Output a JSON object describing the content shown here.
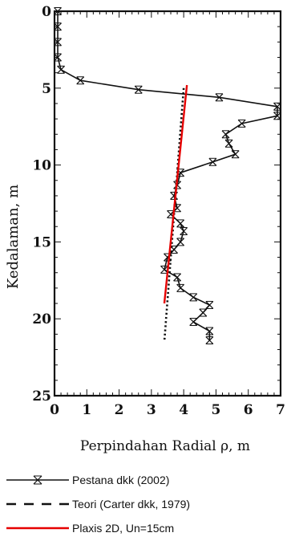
{
  "chart_data": {
    "type": "line",
    "xlabel": "Perpindahan Radial ρ, m",
    "ylabel": "Kedalaman, m",
    "xlim": [
      0,
      7
    ],
    "ylim": [
      0,
      25
    ],
    "y_inverted": true,
    "xticks": [
      0,
      1,
      2,
      3,
      4,
      5,
      6,
      7
    ],
    "yticks": [
      0,
      5,
      10,
      15,
      20,
      25
    ],
    "grid": false,
    "legend_position": "bottom",
    "series": [
      {
        "name": "Pestana dkk (2002)",
        "color": "#111111",
        "line_style": "solid",
        "marker": "x",
        "points": [
          [
            0.1,
            0.0
          ],
          [
            0.1,
            1.0
          ],
          [
            0.1,
            2.0
          ],
          [
            0.1,
            3.0
          ],
          [
            0.2,
            3.8
          ],
          [
            0.8,
            4.5
          ],
          [
            2.6,
            5.1
          ],
          [
            5.1,
            5.6
          ],
          [
            6.9,
            6.2
          ],
          [
            6.9,
            6.8
          ],
          [
            5.8,
            7.3
          ],
          [
            5.3,
            8.0
          ],
          [
            5.4,
            8.6
          ],
          [
            5.6,
            9.3
          ],
          [
            4.9,
            9.8
          ],
          [
            3.9,
            10.5
          ],
          [
            3.8,
            11.3
          ],
          [
            3.7,
            12.0
          ],
          [
            3.8,
            12.8
          ],
          [
            3.6,
            13.2
          ],
          [
            3.9,
            13.8
          ],
          [
            4.0,
            14.3
          ],
          [
            3.9,
            15.0
          ],
          [
            3.7,
            15.5
          ],
          [
            3.5,
            16.0
          ],
          [
            3.4,
            16.8
          ],
          [
            3.8,
            17.3
          ],
          [
            3.9,
            18.0
          ],
          [
            4.3,
            18.6
          ],
          [
            4.8,
            19.1
          ],
          [
            4.6,
            19.6
          ],
          [
            4.3,
            20.2
          ],
          [
            4.8,
            20.8
          ],
          [
            4.8,
            21.4
          ]
        ]
      },
      {
        "name": "Teori (Carter dkk, 1979)",
        "color": "#111111",
        "line_style": "dotted",
        "marker": "none",
        "points": [
          [
            4.0,
            5.0
          ],
          [
            3.4,
            21.5
          ]
        ]
      },
      {
        "name": "Plaxis 2D, Un=15cm",
        "color": "#e60000",
        "line_style": "solid",
        "marker": "none",
        "points": [
          [
            4.1,
            4.8
          ],
          [
            3.4,
            19.0
          ]
        ]
      }
    ]
  },
  "legend": {
    "items": [
      {
        "label": "Pestana dkk (2002)",
        "icon": "line-x-marker-icon"
      },
      {
        "label": "Teori (Carter dkk, 1979)",
        "icon": "dashed-line-icon"
      },
      {
        "label": "Plaxis 2D, Un=15cm",
        "icon": "red-line-icon"
      }
    ]
  }
}
